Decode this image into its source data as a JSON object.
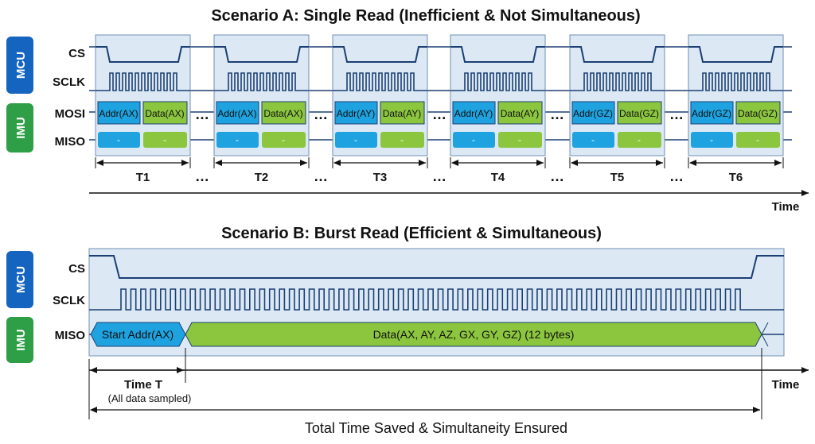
{
  "scenario_a": {
    "title": "Scenario A: Single Read (Inefficient & Not Simultaneous)",
    "side_labels": {
      "mcu": "MCU",
      "imu": "IMU"
    },
    "signals": {
      "cs": "CS",
      "sclk": "SCLK",
      "mosi": "MOSI",
      "miso": "MISO"
    },
    "transactions": [
      {
        "period": "T1",
        "addr": "Addr(AX)",
        "data": "Data(AX)",
        "miso_a": "-",
        "miso_b": "-"
      },
      {
        "period": "T2",
        "addr": "Addr(AX)",
        "data": "Data(AX)",
        "miso_a": "-",
        "miso_b": "-"
      },
      {
        "period": "T3",
        "addr": "Addr(AY)",
        "data": "Data(AY)",
        "miso_a": "-",
        "miso_b": "-"
      },
      {
        "period": "T4",
        "addr": "Addr(AY)",
        "data": "Data(AY)",
        "miso_a": "-",
        "miso_b": "-"
      },
      {
        "period": "T5",
        "addr": "Addr(GZ)",
        "data": "Data(GZ)",
        "miso_a": "-",
        "miso_b": "-"
      },
      {
        "period": "T6",
        "addr": "Addr(GZ)",
        "data": "Data(GZ)",
        "miso_a": "-",
        "miso_b": "-"
      }
    ],
    "ellipsis": "…",
    "time_axis": "Time"
  },
  "scenario_b": {
    "title": "Scenario B: Burst Read (Efficient & Simultaneous)",
    "side_labels": {
      "mcu": "MCU",
      "imu": "IMU"
    },
    "signals": {
      "cs": "CS",
      "sclk": "SCLK",
      "miso": "MISO"
    },
    "start_addr": "Start Addr(AX)",
    "data": "Data(AX, AY, AZ, GX, GY, GZ) (12 bytes)",
    "time_t": "Time T",
    "time_t_note": "(All data sampled)",
    "time_axis": "Time",
    "summary": "Total Time Saved & Simultaneity Ensured"
  },
  "colors": {
    "signal_line": "#1b3f73",
    "panel_fill": "#dce9f5",
    "panel_stroke": "#6f8fb3",
    "addr_box": "#1fa3e0",
    "data_box": "#8cc63f",
    "mcu_badge": "#1565c0",
    "imu_badge": "#2e9e47"
  }
}
